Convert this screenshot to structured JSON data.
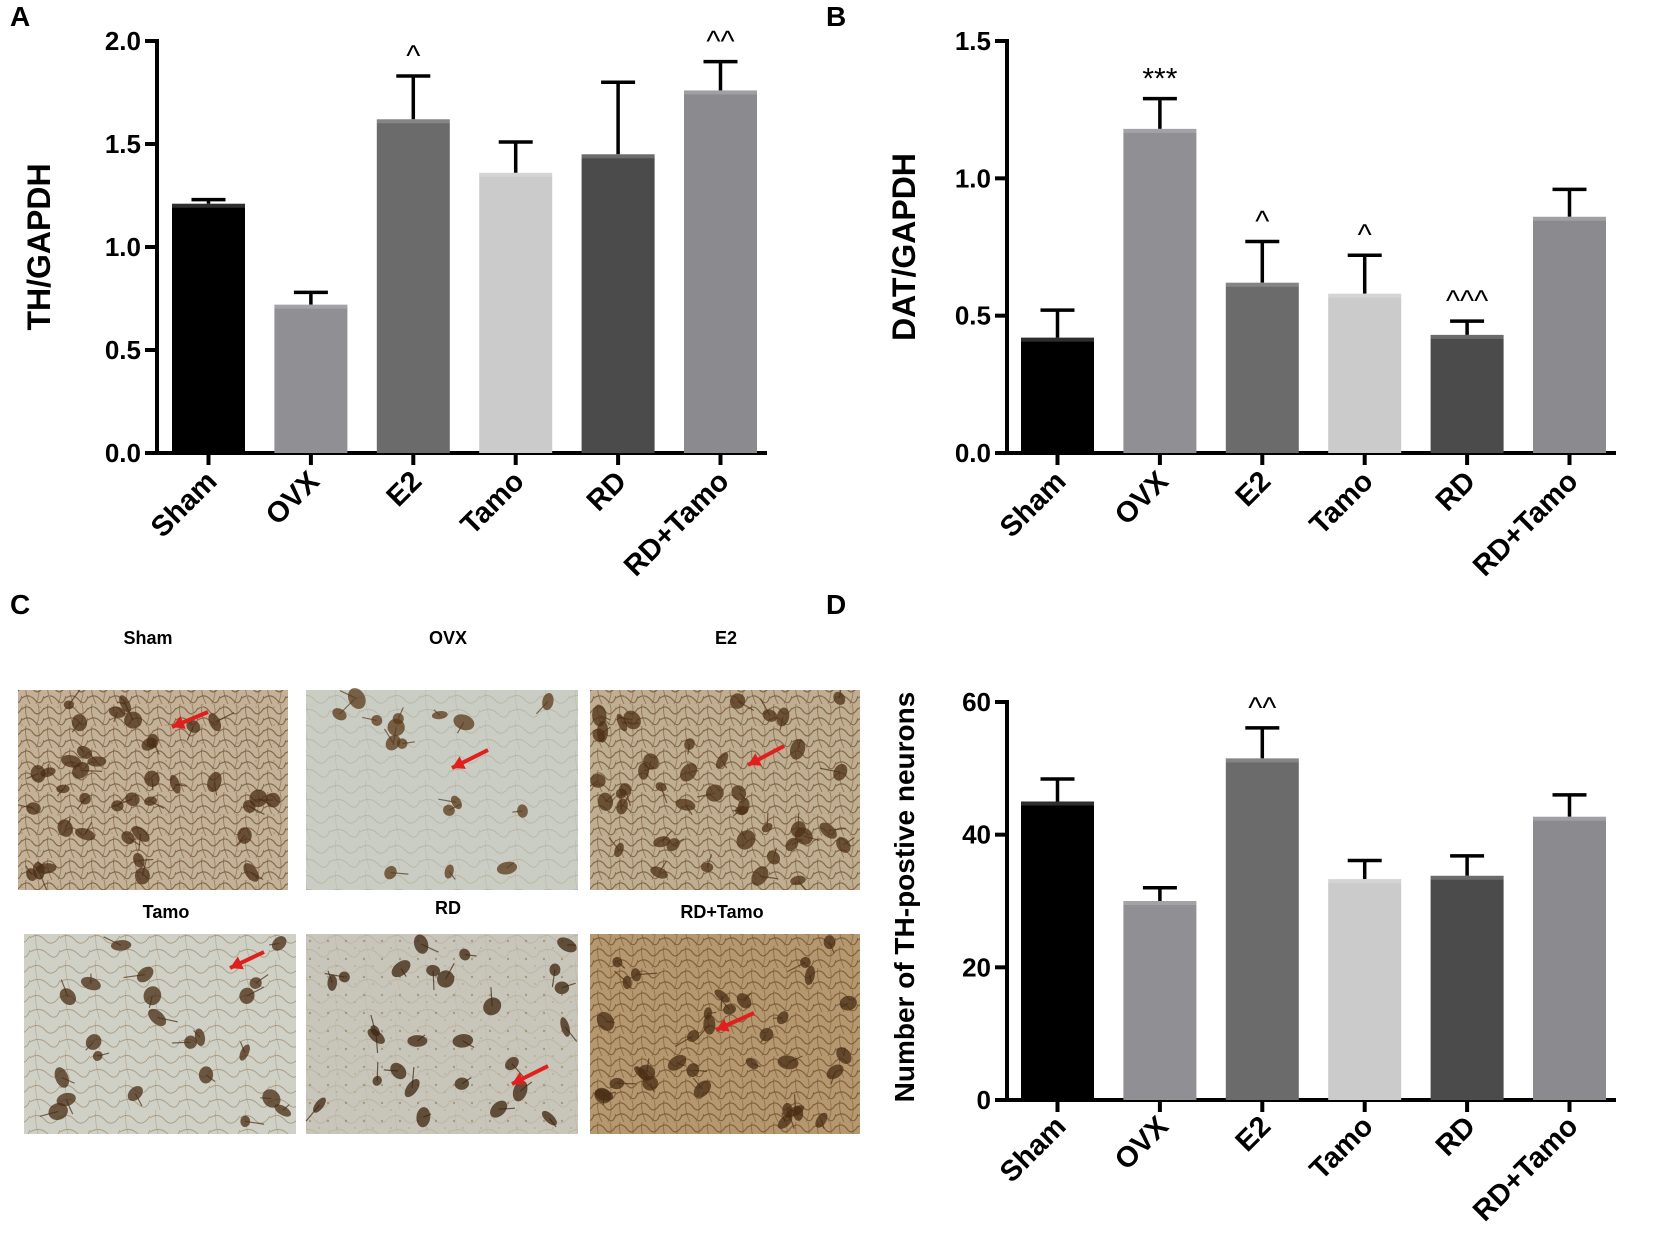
{
  "panels": {
    "A": "A",
    "B": "B",
    "C": "C",
    "D": "D"
  },
  "colors": {
    "Sham": "#000000",
    "OVX": "#8f8f94",
    "E2": "#6b6b6b",
    "Tamo": "#cbcbcb",
    "RD": "#4b4b4b",
    "RD+Tamo": "#8b8b8f",
    "arrow": "#e0201e",
    "tissue_light": "#d8dbd2",
    "tissue_dark": "#6b4a2a"
  },
  "micrographs": {
    "titles": [
      "Sham",
      "OVX",
      "E2",
      "Tamo",
      "RD",
      "RD+Tamo"
    ]
  },
  "chart_data": [
    {
      "id": "A",
      "type": "bar",
      "title": "",
      "ylabel": "TH/GAPDH",
      "xlabel": "",
      "categories": [
        "Sham",
        "OVX",
        "E2",
        "Tamo",
        "RD",
        "RD+Tamo"
      ],
      "values": [
        1.21,
        0.72,
        1.62,
        1.36,
        1.45,
        1.76
      ],
      "errors": [
        0.02,
        0.06,
        0.21,
        0.15,
        0.35,
        0.14
      ],
      "annotations": [
        "",
        "",
        "^",
        "",
        "",
        "^^"
      ],
      "ylim": [
        0,
        2.0
      ],
      "yticks": [
        "0.0",
        "0.5",
        "1.0",
        "1.5",
        "2.0"
      ],
      "ytick_values": [
        0,
        0.5,
        1.0,
        1.5,
        2.0
      ]
    },
    {
      "id": "B",
      "type": "bar",
      "title": "",
      "ylabel": "DAT/GAPDH",
      "xlabel": "",
      "categories": [
        "Sham",
        "OVX",
        "E2",
        "Tamo",
        "RD",
        "RD+Tamo"
      ],
      "values": [
        0.42,
        1.18,
        0.62,
        0.58,
        0.43,
        0.86
      ],
      "errors": [
        0.1,
        0.11,
        0.15,
        0.14,
        0.05,
        0.1
      ],
      "annotations": [
        "",
        "***",
        "^",
        "^",
        "^^^",
        ""
      ],
      "ylim": [
        0,
        1.5
      ],
      "yticks": [
        "0.0",
        "0.5",
        "1.0",
        "1.5"
      ],
      "ytick_values": [
        0,
        0.5,
        1.0,
        1.5
      ]
    },
    {
      "id": "D",
      "type": "bar",
      "title": "",
      "ylabel": "Number of TH-postive neurons",
      "xlabel": "",
      "categories": [
        "Sham",
        "OVX",
        "E2",
        "Tamo",
        "RD",
        "RD+Tamo"
      ],
      "values": [
        45,
        30,
        51.5,
        33.3,
        33.8,
        42.7
      ],
      "errors": [
        3.4,
        2.0,
        4.6,
        2.8,
        3.0,
        3.3
      ],
      "annotations": [
        "",
        "",
        "^^",
        "",
        "",
        ""
      ],
      "ylim": [
        0,
        60
      ],
      "yticks": [
        "0",
        "20",
        "40",
        "60"
      ],
      "ytick_values": [
        0,
        20,
        40,
        60
      ]
    }
  ]
}
